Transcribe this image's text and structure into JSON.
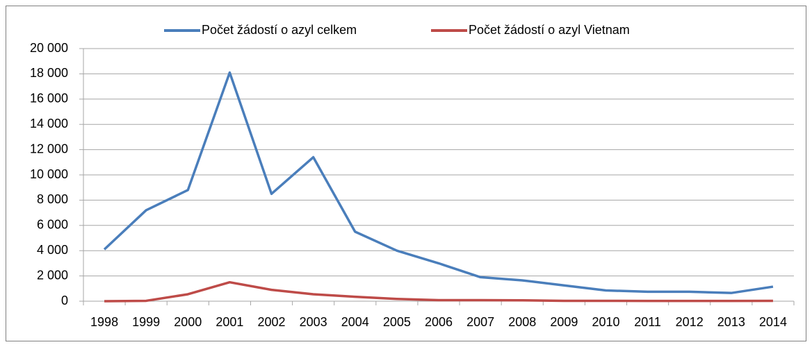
{
  "chart_data": {
    "type": "line",
    "categories": [
      "1998",
      "1999",
      "2000",
      "2001",
      "2002",
      "2003",
      "2004",
      "2005",
      "2006",
      "2007",
      "2008",
      "2009",
      "2010",
      "2011",
      "2012",
      "2013",
      "2014"
    ],
    "series": [
      {
        "name": "Počet žádostí o azyl celkem",
        "color": "#4a7ebb",
        "values": [
          4100,
          7200,
          8800,
          18100,
          8500,
          11400,
          5500,
          4000,
          3000,
          1900,
          1650,
          1250,
          850,
          750,
          750,
          650,
          1150
        ]
      },
      {
        "name": "Počet žádostí o azyl Vietnam",
        "color": "#be4b48",
        "values": [
          0,
          30,
          550,
          1500,
          900,
          550,
          350,
          180,
          80,
          80,
          70,
          30,
          30,
          20,
          20,
          20,
          30
        ]
      }
    ],
    "ylim": [
      0,
      20000
    ],
    "yticks": [
      0,
      {
        "value": 2000,
        "label": "2 000"
      },
      {
        "value": 4000,
        "label": "4 000"
      },
      {
        "value": 6000,
        "label": "6 000"
      },
      {
        "value": 8000,
        "label": "8 000"
      },
      {
        "value": 10000,
        "label": "10 000"
      },
      {
        "value": 12000,
        "label": "12 000"
      },
      {
        "value": 14000,
        "label": "14 000"
      },
      {
        "value": 16000,
        "label": "16 000"
      },
      {
        "value": 18000,
        "label": "18 000"
      },
      {
        "value": 20000,
        "label": "20 000"
      }
    ],
    "grid": true,
    "legend": "top"
  }
}
